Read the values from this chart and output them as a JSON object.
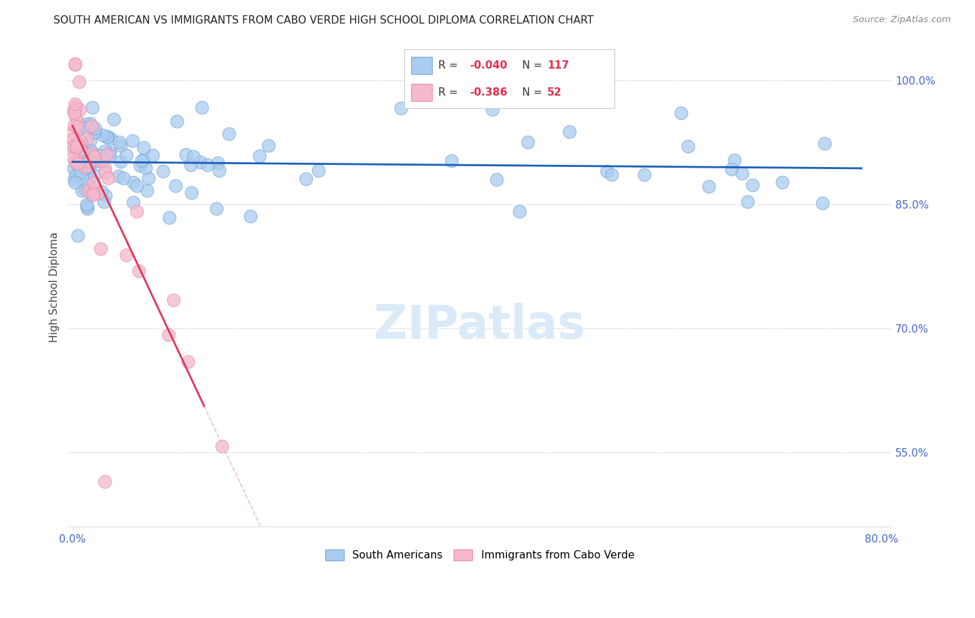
{
  "title": "SOUTH AMERICAN VS IMMIGRANTS FROM CABO VERDE HIGH SCHOOL DIPLOMA CORRELATION CHART",
  "source": "Source: ZipAtlas.com",
  "ylabel": "High School Diploma",
  "right_yticks": [
    55.0,
    70.0,
    85.0,
    100.0
  ],
  "xlim": [
    0.0,
    80.0
  ],
  "ylim": [
    46.0,
    104.0
  ],
  "blue_R": -0.04,
  "blue_N": 117,
  "pink_R": -0.386,
  "pink_N": 52,
  "blue_color": "#AACCF0",
  "pink_color": "#F5B8CC",
  "blue_edge_color": "#7AAAD8",
  "pink_edge_color": "#E890AA",
  "blue_line_color": "#1C5FBB",
  "pink_line_color": "#E0355A",
  "diag_line_color": "#F0C0D0",
  "legend_blue_label": "South Americans",
  "legend_pink_label": "Immigrants from Cabo Verde",
  "legend_r_color": "#E03050",
  "legend_n_color": "#1C5FBB",
  "grid_color": "#DDDDDD",
  "tick_color": "#4466CC",
  "title_color": "#222222",
  "source_color": "#888888",
  "ylabel_color": "#444444"
}
